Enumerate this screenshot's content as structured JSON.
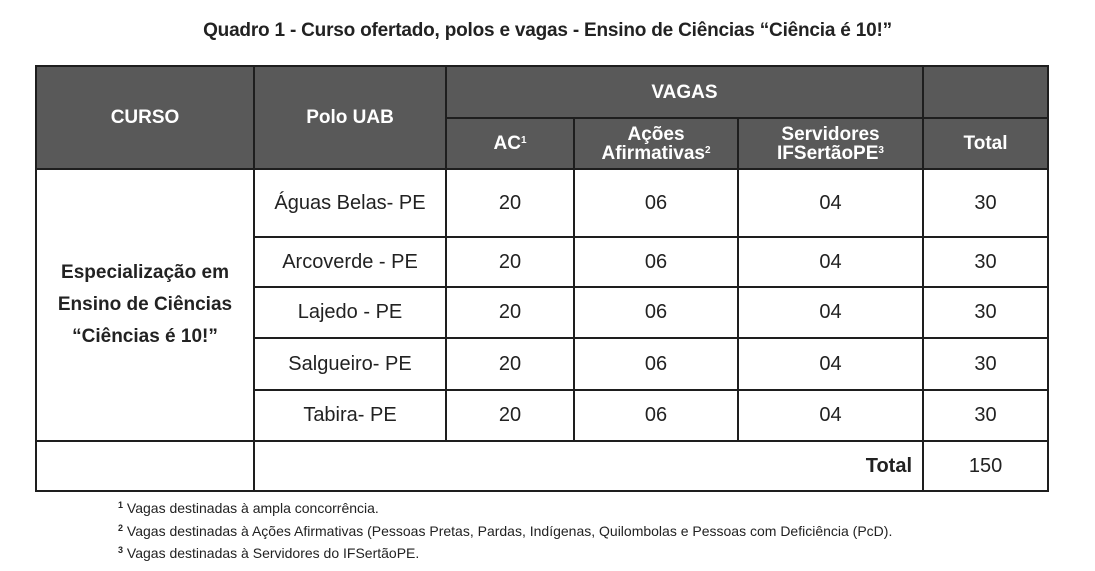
{
  "caption": "Quadro 1 - Curso ofertado, polos e vagas - Ensino de Ciências “Ciência é 10!”",
  "header": {
    "curso": "CURSO",
    "polo": "Polo UAB",
    "vagas": "VAGAS",
    "ac": "AC",
    "ac_sup": "1",
    "acoes_line1": "Ações",
    "acoes_line2": "Afirmativas",
    "acoes_sup": "2",
    "serv_line1": "Servidores",
    "serv_line2": "IFSertãoPE",
    "serv_sup": "3",
    "total": "Total"
  },
  "course": {
    "line1": "Especialização em",
    "line2": "Ensino de Ciências",
    "line3": "“Ciências é 10!”"
  },
  "rows": [
    {
      "polo": "Águas Belas- PE",
      "ac": "20",
      "acoes": "06",
      "servidores": "04",
      "total": "30"
    },
    {
      "polo": "Arcoverde -  PE",
      "ac": "20",
      "acoes": "06",
      "servidores": "04",
      "total": "30"
    },
    {
      "polo": "Lajedo - PE",
      "ac": "20",
      "acoes": "06",
      "servidores": "04",
      "total": "30"
    },
    {
      "polo": "Salgueiro- PE",
      "ac": "20",
      "acoes": "06",
      "servidores": "04",
      "total": "30"
    },
    {
      "polo": "Tabira- PE",
      "ac": "20",
      "acoes": "06",
      "servidores": "04",
      "total": "30"
    }
  ],
  "footer": {
    "label": "Total",
    "value": "150"
  },
  "notes": [
    {
      "num": "1",
      "text": "Vagas destinadas à ampla concorrência."
    },
    {
      "num": "2",
      "text": "Vagas destinadas à Ações Afirmativas (Pessoas Pretas, Pardas, Indígenas, Quilombolas e Pessoas com Deficiência (PcD)."
    },
    {
      "num": "3",
      "text": "Vagas destinadas à Servidores do IFSertãoPE."
    }
  ]
}
